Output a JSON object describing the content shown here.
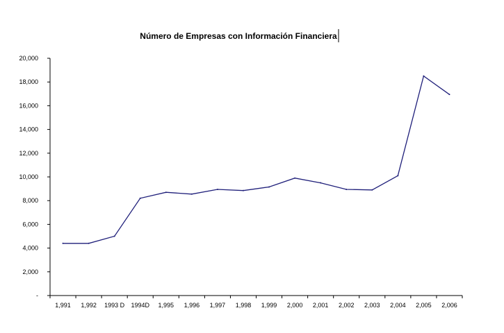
{
  "chart_data": {
    "type": "line",
    "title": "Número de Empresas con Información Financiera",
    "xlabel": "",
    "ylabel": "",
    "categories": [
      "1,991",
      "1,992",
      "1993 D",
      "1994D",
      "1,995",
      "1,996",
      "1,997",
      "1,998",
      "1,999",
      "2,000",
      "2,001",
      "2,002",
      "2,003",
      "2,004",
      "2,005",
      "2,006"
    ],
    "series": [
      {
        "values": [
          4400,
          4400,
          5000,
          8200,
          8700,
          8550,
          8950,
          8850,
          9150,
          9900,
          9500,
          8950,
          8900,
          10100,
          18500,
          16950
        ]
      }
    ],
    "ylim": [
      0,
      20000
    ],
    "yticks": [
      0,
      2000,
      4000,
      6000,
      8000,
      10000,
      12000,
      14000,
      16000,
      18000,
      20000
    ],
    "ytick_labels": [
      "-",
      "2,000",
      "4,000",
      "6,000",
      "8,000",
      "10,000",
      "12,000",
      "14,000",
      "16,000",
      "18,000",
      "20,000"
    ],
    "grid": false,
    "line_color": "#1f1f7a"
  }
}
